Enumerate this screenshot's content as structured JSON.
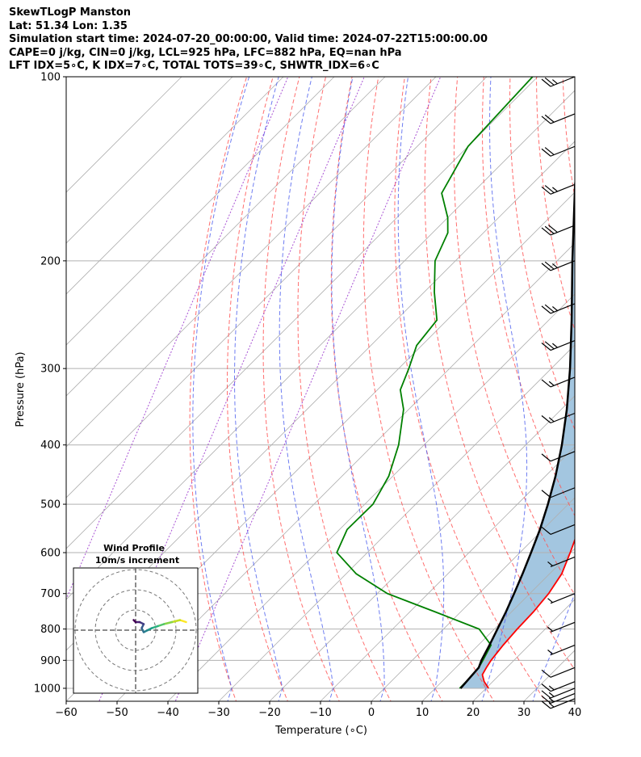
{
  "header": {
    "line1": "SkewTLogP Manston",
    "line2": "Lat: 51.34   Lon: 1.35",
    "line3": "Simulation start time: 2024-07-20_00:00:00, Valid time: 2024-07-22T15:00:00.00",
    "line4": "CAPE=0 j/kg, CIN=0 j/kg, LCL=925 hPa, LFC=882 hPa, EQ=nan hPa",
    "line5": "LFT IDX=5∘C, K IDX=7∘C, TOTAL TOTS=39∘C, SHWTR_IDX=6∘C"
  },
  "chart_data": {
    "type": "line",
    "subtype": "skew-t log-p diagram",
    "xlabel": "Temperature (∘C)",
    "ylabel": "Pressure (hPa)",
    "xlim": [
      -60,
      40
    ],
    "ylim": [
      1050,
      100
    ],
    "y_scale": "log",
    "x_ticks": [
      "−60",
      "−50",
      "−40",
      "−30",
      "−20",
      "−10",
      "0",
      "10",
      "20",
      "30",
      "40"
    ],
    "y_ticks": [
      "1000",
      "900",
      "800",
      "700",
      "600",
      "500",
      "400",
      "300",
      "200",
      "100"
    ],
    "grid": true,
    "series": [
      {
        "role": "temperature",
        "color": "#ff0000",
        "points": [
          [
            1000,
            20.5
          ],
          [
            975,
            18.3
          ],
          [
            950,
            16.6
          ],
          [
            925,
            16.0
          ],
          [
            900,
            15.5
          ],
          [
            850,
            14.9
          ],
          [
            800,
            14.5
          ],
          [
            750,
            14.3
          ],
          [
            700,
            13.7
          ],
          [
            650,
            12.4
          ],
          [
            600,
            9.9
          ],
          [
            550,
            7.0
          ],
          [
            500,
            3.9
          ],
          [
            450,
            0.4
          ],
          [
            400,
            -3.7
          ],
          [
            350,
            -8.7
          ],
          [
            300,
            -14.0
          ],
          [
            275,
            -16.2
          ],
          [
            250,
            -19.2
          ],
          [
            225,
            -22.6
          ],
          [
            210,
            -26.6
          ],
          [
            200,
            -29.0
          ],
          [
            175,
            -34.4
          ],
          [
            150,
            -40.8
          ],
          [
            125,
            -49.8
          ],
          [
            100,
            -60.4
          ]
        ]
      },
      {
        "role": "dewpoint",
        "color": "#008000",
        "points": [
          [
            1000,
            14.8
          ],
          [
            975,
            14.8
          ],
          [
            950,
            14.7
          ],
          [
            925,
            14.5
          ],
          [
            900,
            13.9
          ],
          [
            850,
            12.5
          ],
          [
            800,
            7.0
          ],
          [
            750,
            -5.0
          ],
          [
            700,
            -18.0
          ],
          [
            650,
            -28.0
          ],
          [
            600,
            -36.0
          ],
          [
            550,
            -38.5
          ],
          [
            500,
            -38.4
          ],
          [
            450,
            -40.8
          ],
          [
            400,
            -45.0
          ],
          [
            350,
            -51.0
          ],
          [
            325,
            -55.5
          ],
          [
            300,
            -58.0
          ],
          [
            275,
            -61.0
          ],
          [
            250,
            -62.0
          ],
          [
            225,
            -68.0
          ],
          [
            200,
            -74.0
          ],
          [
            180,
            -77.0
          ],
          [
            170,
            -80.0
          ],
          [
            155,
            -86.0
          ],
          [
            130,
            -90.0
          ],
          [
            100,
            -91.0
          ]
        ]
      },
      {
        "role": "parcel",
        "color": "#000000",
        "points": [
          [
            1000,
            15.0
          ],
          [
            925,
            14.5
          ],
          [
            900,
            13.6
          ],
          [
            850,
            12.2
          ],
          [
            800,
            10.6
          ],
          [
            750,
            8.9
          ],
          [
            700,
            6.9
          ],
          [
            650,
            4.7
          ],
          [
            600,
            2.2
          ],
          [
            550,
            -0.6
          ],
          [
            500,
            -4.0
          ],
          [
            450,
            -8.0
          ],
          [
            400,
            -12.9
          ],
          [
            350,
            -18.9
          ],
          [
            300,
            -26.3
          ],
          [
            250,
            -35.5
          ],
          [
            200,
            -47.0
          ],
          [
            150,
            -61.5
          ],
          [
            100,
            -79.7
          ]
        ]
      }
    ],
    "wind_barbs": [
      {
        "p": 100,
        "spd": 25
      },
      {
        "p": 115,
        "spd": 20
      },
      {
        "p": 130,
        "spd": 20
      },
      {
        "p": 150,
        "spd": 25
      },
      {
        "p": 175,
        "spd": 30
      },
      {
        "p": 200,
        "spd": 25
      },
      {
        "p": 235,
        "spd": 25
      },
      {
        "p": 270,
        "spd": 25
      },
      {
        "p": 310,
        "spd": 15
      },
      {
        "p": 355,
        "spd": 15
      },
      {
        "p": 410,
        "spd": 10
      },
      {
        "p": 470,
        "spd": 10
      },
      {
        "p": 540,
        "spd": 10
      },
      {
        "p": 610,
        "spd": 5
      },
      {
        "p": 700,
        "spd": 5
      },
      {
        "p": 780,
        "spd": 5
      },
      {
        "p": 850,
        "spd": 5
      },
      {
        "p": 925,
        "spd": 10
      },
      {
        "p": 975,
        "spd": 15
      },
      {
        "p": 1000,
        "spd": 15
      },
      {
        "p": 1020,
        "spd": 15
      },
      {
        "p": 1040,
        "spd": 15
      }
    ],
    "inset": {
      "title": "Wind Profile",
      "subtitle": "10m/s increment",
      "rings_ms": [
        10,
        20,
        30
      ],
      "hodograph": [
        [
          25,
          4
        ],
        [
          22,
          5
        ],
        [
          18,
          4
        ],
        [
          14,
          3
        ],
        [
          11,
          2
        ],
        [
          8,
          1
        ],
        [
          6,
          0
        ],
        [
          4,
          -1
        ],
        [
          3,
          1
        ],
        [
          4,
          3
        ],
        [
          2,
          4
        ],
        [
          0,
          4
        ],
        [
          -1,
          5
        ]
      ]
    }
  }
}
